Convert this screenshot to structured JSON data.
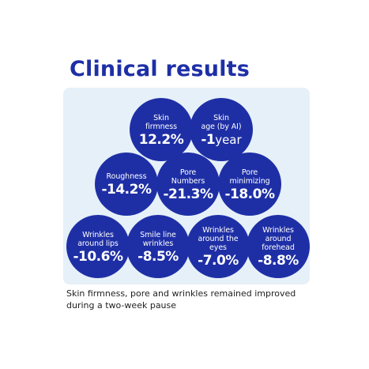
{
  "title": "Clinical results",
  "results": [
    {
      "label": "Skin\nfirmness",
      "value": "12.2%",
      "unit": ""
    },
    {
      "label": "Skin\nage (by AI)",
      "value": "-1",
      "unit": "year"
    },
    {
      "label": "Roughness",
      "value": "-14.2%",
      "unit": ""
    },
    {
      "label": "Pore\nNumbers",
      "value": "-21.3%",
      "unit": ""
    },
    {
      "label": "Pore\nminimizing",
      "value": "-18.0%",
      "unit": ""
    },
    {
      "label": "Wrinkles\naround lips",
      "value": "-10.6%",
      "unit": ""
    },
    {
      "label": "Smile line\nwrinkles",
      "value": "-8.5%",
      "unit": ""
    },
    {
      "label": "Wrinkles\naround the\neyes",
      "value": "-7.0%",
      "unit": ""
    },
    {
      "label": "Wrinkles\naround\nforehead",
      "value": "-8.8%",
      "unit": ""
    }
  ],
  "footnote": "Skin firmness, pore and wrinkles remained improved during a two-week pause",
  "colors": {
    "brand_blue": "#1e2fa6",
    "panel": "#e6f0f8"
  }
}
